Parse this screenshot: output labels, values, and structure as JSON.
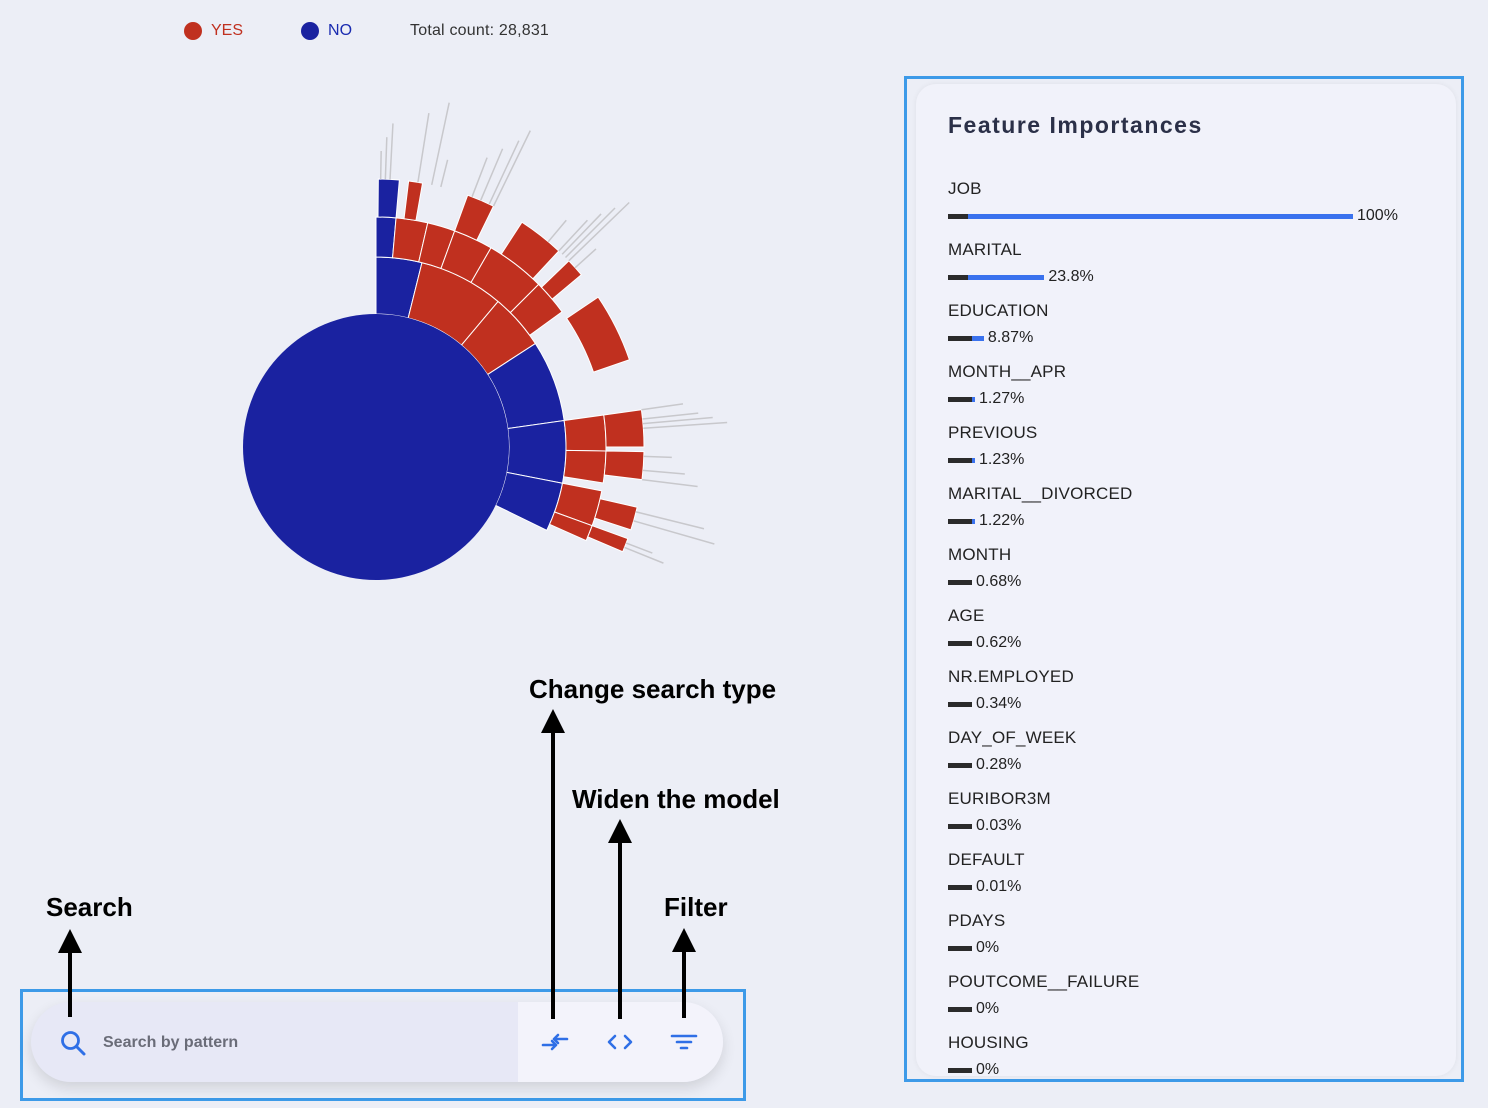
{
  "legend": {
    "yes_label": "YES",
    "no_label": "NO",
    "total": "Total count: 28,831",
    "yes_color": "#c0301f",
    "no_color": "#1a22a0"
  },
  "features": {
    "title": "Feature Importances",
    "items": [
      {
        "name": "JOB",
        "value": "100%",
        "pct": 100
      },
      {
        "name": "MARITAL",
        "value": "23.8%",
        "pct": 23.8
      },
      {
        "name": "EDUCATION",
        "value": "8.87%",
        "pct": 8.87
      },
      {
        "name": "MONTH__APR",
        "value": "1.27%",
        "pct": 1.27
      },
      {
        "name": "PREVIOUS",
        "value": "1.23%",
        "pct": 1.23
      },
      {
        "name": "MARITAL__DIVORCED",
        "value": "1.22%",
        "pct": 1.22
      },
      {
        "name": "MONTH",
        "value": "0.68%",
        "pct": 0.68
      },
      {
        "name": "AGE",
        "value": "0.62%",
        "pct": 0.62
      },
      {
        "name": "NR.EMPLOYED",
        "value": "0.34%",
        "pct": 0.34
      },
      {
        "name": "DAY_OF_WEEK",
        "value": "0.28%",
        "pct": 0.28
      },
      {
        "name": "EURIBOR3M",
        "value": "0.03%",
        "pct": 0.03
      },
      {
        "name": "DEFAULT",
        "value": "0.01%",
        "pct": 0.01
      },
      {
        "name": "PDAYS",
        "value": "0%",
        "pct": 0
      },
      {
        "name": "POUTCOME__FAILURE",
        "value": "0%",
        "pct": 0
      },
      {
        "name": "HOUSING",
        "value": "0%",
        "pct": 0
      }
    ]
  },
  "search": {
    "placeholder": "Search by pattern",
    "accent_color": "#2f6fe6"
  },
  "annotations": {
    "search": "Search",
    "change_search_type": "Change search type",
    "widen_model": "Widen the model",
    "filter": "Filter"
  },
  "icons": {
    "search": "search-icon",
    "change_search_type": "swap-arrows-icon",
    "widen_model": "code-brackets-icon",
    "filter": "filter-lines-icon"
  }
}
